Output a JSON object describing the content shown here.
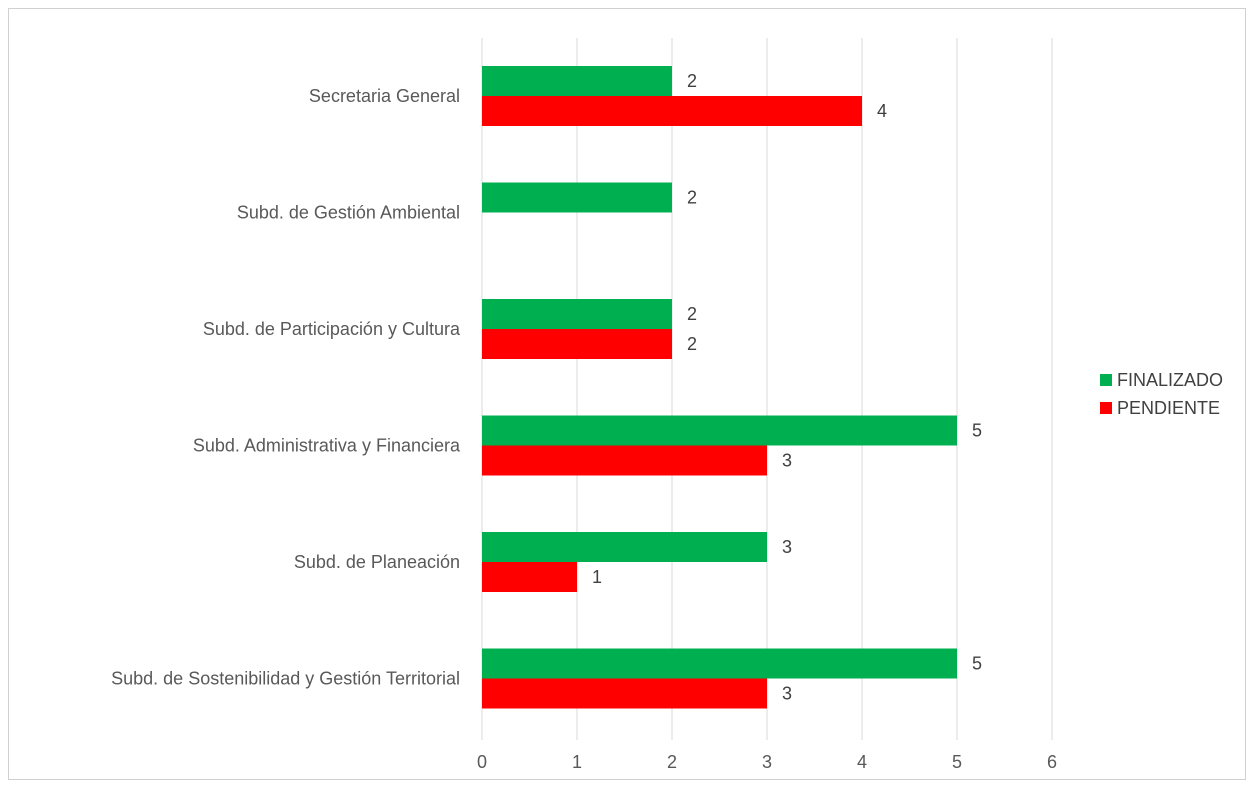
{
  "chart_data": {
    "type": "bar",
    "orientation": "horizontal",
    "categories": [
      "Secretaria General",
      "Subd. de Gestión Ambiental",
      "Subd. de Participación y Cultura",
      "Subd. Administrativa y Financiera",
      "Subd. de Planeación",
      "Subd. de Sostenibilidad  y Gestión Territorial"
    ],
    "series": [
      {
        "name": "FINALIZADO",
        "color": "#00b050",
        "values": [
          2,
          2,
          2,
          5,
          3,
          5
        ]
      },
      {
        "name": "PENDIENTE",
        "color": "#ff0000",
        "values": [
          4,
          null,
          2,
          3,
          1,
          3
        ]
      }
    ],
    "xlim": [
      0,
      6
    ],
    "xticks": [
      "0",
      "1",
      "2",
      "3",
      "4",
      "5",
      "6"
    ],
    "grid": true,
    "legend_position": "right",
    "data_labels": true
  }
}
